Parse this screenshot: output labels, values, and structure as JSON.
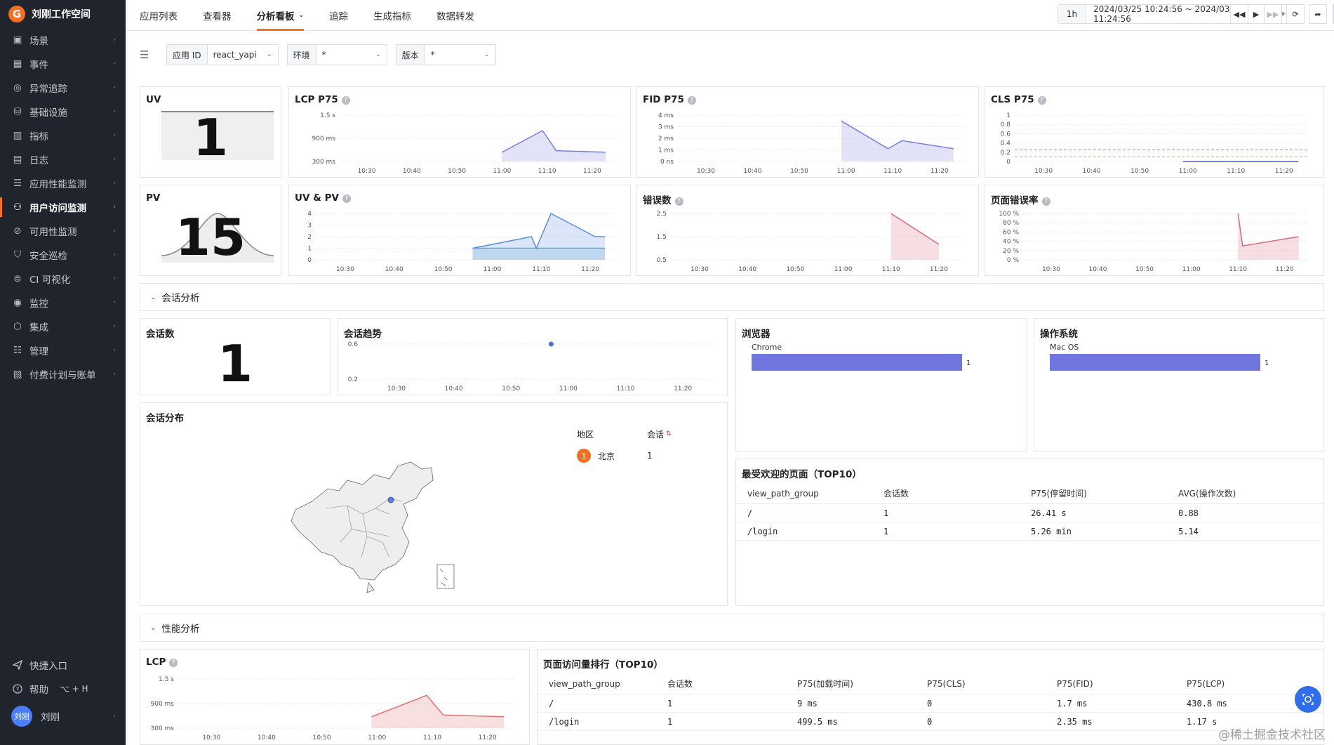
{
  "workspace": {
    "name": "刘刚工作空间",
    "logo_letter": "G"
  },
  "sidebar": {
    "items": [
      {
        "label": "场景",
        "icon": "scene-icon"
      },
      {
        "label": "事件",
        "icon": "calendar-icon"
      },
      {
        "label": "异常追踪",
        "icon": "bug-icon"
      },
      {
        "label": "基础设施",
        "icon": "infrastructure-icon"
      },
      {
        "label": "指标",
        "icon": "metrics-icon"
      },
      {
        "label": "日志",
        "icon": "log-icon"
      },
      {
        "label": "应用性能监测",
        "icon": "apm-icon"
      },
      {
        "label": "用户访问监测",
        "icon": "rum-icon",
        "active": true
      },
      {
        "label": "可用性监测",
        "icon": "availability-icon"
      },
      {
        "label": "安全巡检",
        "icon": "shield-icon"
      },
      {
        "label": "CI 可视化",
        "icon": "ci-icon"
      },
      {
        "label": "监控",
        "icon": "monitor-icon"
      },
      {
        "label": "集成",
        "icon": "integration-icon"
      },
      {
        "label": "管理",
        "icon": "settings-icon"
      },
      {
        "label": "付费计划与账单",
        "icon": "billing-icon"
      }
    ],
    "quick_entry": "快捷入口",
    "help": "帮助",
    "help_shortcut": "⌥ + H",
    "user": {
      "avatar": "刘刚",
      "name": "刘刚"
    }
  },
  "topnav": {
    "tabs": [
      "应用列表",
      "查看器",
      "分析看板",
      "追踪",
      "生成指标",
      "数据转发"
    ],
    "active_tab": "分析看板",
    "time_preset": "1h",
    "time_range": "2024/03/25 10:24:56 ~ 2024/03/25 11:24:56"
  },
  "filters": [
    {
      "label": "应用 ID",
      "value": "react_yapi"
    },
    {
      "label": "环境",
      "value": "*"
    },
    {
      "label": "版本",
      "value": "*"
    }
  ],
  "metrics": {
    "uv": {
      "title": "UV",
      "value": "1"
    },
    "pv": {
      "title": "PV",
      "value": "15"
    },
    "lcp": {
      "title": "LCP P75"
    },
    "fid": {
      "title": "FID P75"
    },
    "cls": {
      "title": "CLS P75"
    },
    "uvpv": {
      "title": "UV & PV"
    },
    "errors": {
      "title": "错误数"
    },
    "error_rate": {
      "title": "页面错误率"
    }
  },
  "time_ticks": [
    "10:30",
    "10:40",
    "10:50",
    "11:00",
    "11:10",
    "11:20"
  ],
  "chart_data": [
    {
      "id": "lcp",
      "type": "area",
      "title": "LCP P75",
      "yticks": [
        "1.5 s",
        "900 ms",
        "300 ms"
      ],
      "ylim": [
        0,
        1.5
      ],
      "x": [
        "11:00",
        "11:09",
        "11:12",
        "11:23"
      ],
      "values": [
        0.3,
        1.0,
        0.35,
        0.3
      ],
      "color": "#7b7fe0"
    },
    {
      "id": "fid",
      "type": "area",
      "title": "FID P75",
      "yticks": [
        "4 ms",
        "3 ms",
        "2 ms",
        "1 ms",
        "0 ns"
      ],
      "ylim": [
        0,
        4
      ],
      "x": [
        "10:59",
        "11:09",
        "11:12",
        "11:23"
      ],
      "values": [
        3.5,
        1.1,
        1.8,
        1.1
      ],
      "color": "#7b7fe0"
    },
    {
      "id": "cls",
      "type": "line",
      "title": "CLS P75",
      "yticks": [
        "1",
        "0.8",
        "0.6",
        "0.4",
        "0.2",
        "0"
      ],
      "ylim": [
        0,
        1
      ],
      "x": [
        "10:59",
        "11:23"
      ],
      "values": [
        0.0,
        0.0
      ],
      "color": "#4e55d8"
    },
    {
      "id": "uvpv",
      "type": "area",
      "title": "UV & PV",
      "yticks": [
        "4",
        "3",
        "2",
        "1",
        "0"
      ],
      "ylim": [
        0,
        4
      ],
      "series": [
        {
          "name": "PV",
          "x": [
            "10:56",
            "11:08",
            "11:09",
            "11:10",
            "11:12",
            "11:21",
            "11:23"
          ],
          "values": [
            1,
            2,
            1,
            2,
            4,
            2,
            2
          ],
          "color": "#5a8de0"
        },
        {
          "name": "UV",
          "x": [
            "10:56",
            "11:23"
          ],
          "values": [
            1,
            1
          ],
          "color": "#5ab3cf"
        }
      ]
    },
    {
      "id": "errors",
      "type": "area",
      "title": "错误数",
      "yticks": [
        "2.5",
        "1.5",
        "0.5"
      ],
      "ylim": [
        0,
        3
      ],
      "x": [
        "11:10",
        "11:20"
      ],
      "values": [
        3,
        1
      ],
      "color": "#d96a80"
    },
    {
      "id": "error_rate",
      "type": "area",
      "title": "页面错误率",
      "yticks": [
        "100 %",
        "80 %",
        "60 %",
        "40 %",
        "20 %",
        "0 %"
      ],
      "ylim": [
        0,
        100
      ],
      "x": [
        "11:10",
        "11:11",
        "11:23"
      ],
      "values": [
        100,
        30,
        50
      ],
      "color": "#d96a80"
    },
    {
      "id": "session_trend",
      "type": "scatter",
      "title": "会话趋势",
      "yticks": [
        "0.6",
        "0.2"
      ],
      "ylim": [
        0,
        1
      ],
      "x": [
        "10:57"
      ],
      "values": [
        1
      ],
      "color": "#4e6fd8"
    },
    {
      "id": "browser",
      "type": "bar",
      "title": "浏览器",
      "categories": [
        "Chrome"
      ],
      "values": [
        1
      ],
      "color": "#7075e0"
    },
    {
      "id": "os",
      "type": "bar",
      "title": "操作系统",
      "categories": [
        "Mac OS"
      ],
      "values": [
        1
      ],
      "color": "#7075e0"
    },
    {
      "id": "perf_lcp",
      "type": "area",
      "title": "LCP",
      "yticks": [
        "1.5 s",
        "900 ms",
        "300 ms"
      ],
      "ylim": [
        0,
        1.5
      ],
      "x": [
        "10:59",
        "11:09",
        "11:12",
        "11:23"
      ],
      "values": [
        0.35,
        1.0,
        0.4,
        0.35
      ],
      "color": "#e07070"
    }
  ],
  "session": {
    "section_title": "会话分析",
    "count_title": "会话数",
    "count_value": "1",
    "trend_title": "会话趋势",
    "browser_title": "浏览器",
    "os_title": "操作系统",
    "dist_title": "会话分布",
    "region_header": "地区",
    "session_header": "会话",
    "regions": [
      {
        "rank": "1",
        "name": "北京",
        "count": "1"
      }
    ],
    "top_pages_title": "最受欢迎的页面（TOP10）",
    "top_pages_headers": [
      "view_path_group",
      "会话数",
      "P75(停留时间)",
      "AVG(操作次数)"
    ],
    "top_pages_rows": [
      [
        "/",
        "1",
        "26.41 s",
        "0.88"
      ],
      [
        "/login",
        "1",
        "5.26 min",
        "5.14"
      ]
    ]
  },
  "performance": {
    "section_title": "性能分析",
    "lcp_title": "LCP",
    "rank_title": "页面访问量排行（TOP10）",
    "rank_headers": [
      "view_path_group",
      "会话数",
      "P75(加载时间)",
      "P75(CLS)",
      "P75(FID)",
      "P75(LCP)"
    ],
    "rank_rows": [
      [
        "/",
        "1",
        "9 ms",
        "0",
        "1.7 ms",
        "430.8 ms"
      ],
      [
        "/login",
        "1",
        "499.5 ms",
        "0",
        "2.35 ms",
        "1.17 s"
      ]
    ]
  },
  "watermark": "@稀土掘金技术社区"
}
